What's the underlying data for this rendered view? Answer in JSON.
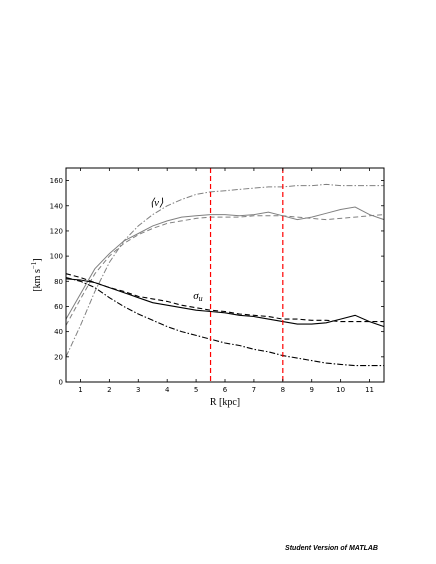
{
  "watermark": "Student Version of MATLAB",
  "chart_data": {
    "type": "line",
    "title": "",
    "xlabel": "R [kpc]",
    "ylabel": "[km s−1]",
    "xlim": [
      0.5,
      11.5
    ],
    "ylim": [
      0,
      170
    ],
    "xticks": [
      1,
      2,
      3,
      4,
      5,
      6,
      7,
      8,
      9,
      10,
      11
    ],
    "yticks": [
      0,
      20,
      40,
      60,
      80,
      100,
      120,
      140,
      160
    ],
    "grid": false,
    "annotations": [
      {
        "text": "⟨v⟩",
        "x": 3.4,
        "y": 140
      },
      {
        "text": "σu",
        "x": 4.9,
        "y": 66
      }
    ],
    "vlines": [
      {
        "x": 5.5,
        "color": "#ff0000",
        "style": "dashed"
      },
      {
        "x": 8.0,
        "color": "#ff0000",
        "style": "dashed"
      }
    ],
    "series": [
      {
        "group": "mean_v",
        "color": "#808080",
        "style": "solid",
        "x": [
          0.5,
          1,
          1.5,
          2,
          2.5,
          3,
          3.5,
          4,
          4.5,
          5,
          5.5,
          6,
          6.5,
          7,
          7.5,
          8,
          8.5,
          9,
          9.5,
          10,
          10.5,
          11,
          11.5
        ],
        "y": [
          50,
          70,
          90,
          102,
          112,
          118,
          124,
          128,
          131,
          132,
          133,
          133,
          132,
          133,
          135,
          132,
          129,
          131,
          134,
          137,
          139,
          133,
          129
        ]
      },
      {
        "group": "mean_v",
        "color": "#808080",
        "style": "dashed",
        "x": [
          0.5,
          1,
          1.5,
          2,
          2.5,
          3,
          3.5,
          4,
          4.5,
          5,
          5.5,
          6,
          6.5,
          7,
          7.5,
          8,
          8.5,
          9,
          9.5,
          10,
          10.5,
          11,
          11.5
        ],
        "y": [
          45,
          66,
          86,
          100,
          110,
          117,
          122,
          126,
          128,
          130,
          131,
          131,
          131,
          132,
          132,
          132,
          131,
          130,
          129,
          130,
          131,
          132,
          133
        ]
      },
      {
        "group": "mean_v",
        "color": "#808080",
        "style": "dashdot",
        "x": [
          0.5,
          1,
          1.5,
          2,
          2.5,
          3,
          3.5,
          4,
          4.5,
          5,
          5.5,
          6,
          6.5,
          7,
          7.5,
          8,
          8.5,
          9,
          9.5,
          10,
          10.5,
          11,
          11.5
        ],
        "y": [
          20,
          45,
          72,
          95,
          112,
          124,
          133,
          140,
          145,
          149,
          151,
          152,
          153,
          154,
          155,
          155,
          156,
          156,
          157,
          156,
          156,
          156,
          156
        ]
      },
      {
        "group": "sigma_u",
        "color": "#000000",
        "style": "solid",
        "x": [
          0.5,
          1,
          1.5,
          2,
          2.5,
          3,
          3.5,
          4,
          4.5,
          5,
          5.5,
          6,
          6.5,
          7,
          7.5,
          8,
          8.5,
          9,
          9.5,
          10,
          10.5,
          11,
          11.5
        ],
        "y": [
          82,
          81,
          79,
          75,
          71,
          67,
          63,
          61,
          59,
          57,
          56,
          55,
          53,
          52,
          50,
          48,
          46,
          46,
          47,
          50,
          53,
          48,
          44
        ]
      },
      {
        "group": "sigma_u",
        "color": "#000000",
        "style": "dashed",
        "x": [
          0.5,
          1,
          1.5,
          2,
          2.5,
          3,
          3.5,
          4,
          4.5,
          5,
          5.5,
          6,
          6.5,
          7,
          7.5,
          8,
          8.5,
          9,
          9.5,
          10,
          10.5,
          11,
          11.5
        ],
        "y": [
          86,
          83,
          79,
          75,
          72,
          68,
          66,
          64,
          61,
          59,
          57,
          56,
          54,
          53,
          52,
          50,
          50,
          49,
          49,
          48,
          48,
          48,
          48
        ]
      },
      {
        "group": "sigma_u",
        "color": "#000000",
        "style": "dashdot",
        "x": [
          0.5,
          1,
          1.5,
          2,
          2.5,
          3,
          3.5,
          4,
          4.5,
          5,
          5.5,
          6,
          6.5,
          7,
          7.5,
          8,
          8.5,
          9,
          9.5,
          10,
          10.5,
          11,
          11.5
        ],
        "y": [
          83,
          80,
          75,
          67,
          60,
          54,
          49,
          44,
          40,
          37,
          34,
          31,
          29,
          26,
          24,
          21,
          19,
          17,
          15,
          14,
          13,
          13,
          13
        ]
      }
    ]
  }
}
